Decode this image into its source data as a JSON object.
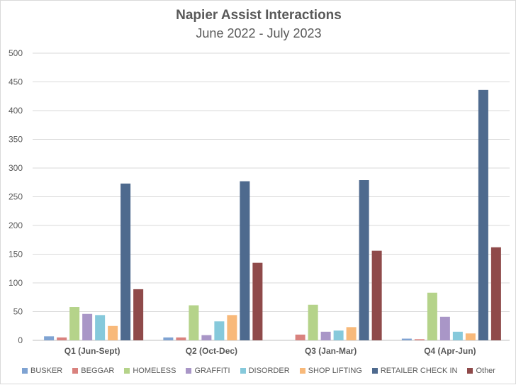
{
  "chart_data": {
    "type": "bar",
    "title": "Napier Assist Interactions",
    "subtitle": "June 2022 - July 2023",
    "xlabel": "",
    "ylabel": "",
    "ylim": [
      0,
      500
    ],
    "yticks": [
      0,
      50,
      100,
      150,
      200,
      250,
      300,
      350,
      400,
      450,
      500
    ],
    "grid": true,
    "legend_position": "bottom",
    "categories": [
      "Q1 (Jun-Sept)",
      "Q2 (Oct-Dec)",
      "Q3 (Jan-Mar)",
      "Q4 (Apr-Jun)"
    ],
    "series": [
      {
        "name": "BUSKER",
        "color": "#7fa3d2",
        "values": [
          7,
          5,
          0,
          3
        ]
      },
      {
        "name": "BEGGAR",
        "color": "#d9827e",
        "values": [
          5,
          5,
          10,
          2
        ]
      },
      {
        "name": "HOMELESS",
        "color": "#b5d38a",
        "values": [
          58,
          61,
          62,
          83
        ]
      },
      {
        "name": "GRAFFITI",
        "color": "#a996c7",
        "values": [
          46,
          9,
          15,
          41
        ]
      },
      {
        "name": "DISORDER",
        "color": "#86c9db",
        "values": [
          44,
          33,
          17,
          15
        ]
      },
      {
        "name": "SHOP LIFTING",
        "color": "#f8b97a",
        "values": [
          25,
          44,
          23,
          12
        ]
      },
      {
        "name": "RETAILER CHECK IN",
        "color": "#4e6a8e",
        "values": [
          273,
          277,
          279,
          436
        ]
      },
      {
        "name": "Other",
        "color": "#8f4a4a",
        "values": [
          89,
          135,
          156,
          162
        ]
      }
    ]
  }
}
